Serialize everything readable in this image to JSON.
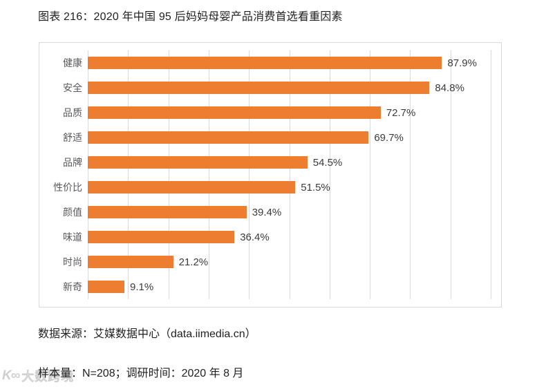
{
  "page": {
    "title": "图表 216：2020 年中国 95 后妈妈母婴产品消费首选看重因素",
    "source_line": "数据来源：艾媒数据中心（data.iimedia.cn）",
    "sample_line": "样本量：N=208；调研时间：2020 年 8 月",
    "watermark": {
      "logo": "K∞",
      "text": "大数跨境"
    }
  },
  "colors": {
    "bar": "#ED7D31",
    "grid": "#D9D9D9",
    "panel_border": "#D9D9D9",
    "category_label": "#595959",
    "value_label": "#3B3B3B",
    "text": "#1F1F1F"
  },
  "chart_data": {
    "type": "bar",
    "orientation": "horizontal",
    "title": "2020 年中国 95 后妈妈母婴产品消费首选看重因素",
    "categories": [
      "健康",
      "安全",
      "品质",
      "舒适",
      "品牌",
      "性价比",
      "颜值",
      "味道",
      "时尚",
      "新奇"
    ],
    "values": [
      87.9,
      84.8,
      72.7,
      69.7,
      54.5,
      51.5,
      39.4,
      36.4,
      21.2,
      9.1
    ],
    "value_labels": [
      "87.9%",
      "84.8%",
      "72.7%",
      "69.7%",
      "54.5%",
      "51.5%",
      "39.4%",
      "36.4%",
      "21.2%",
      "9.1%"
    ],
    "xlabel": "",
    "ylabel": "",
    "xlim": [
      0,
      100
    ],
    "grid_step": 10,
    "grid": "vertical-only",
    "legend": "none",
    "data_labels": "outside-end"
  }
}
